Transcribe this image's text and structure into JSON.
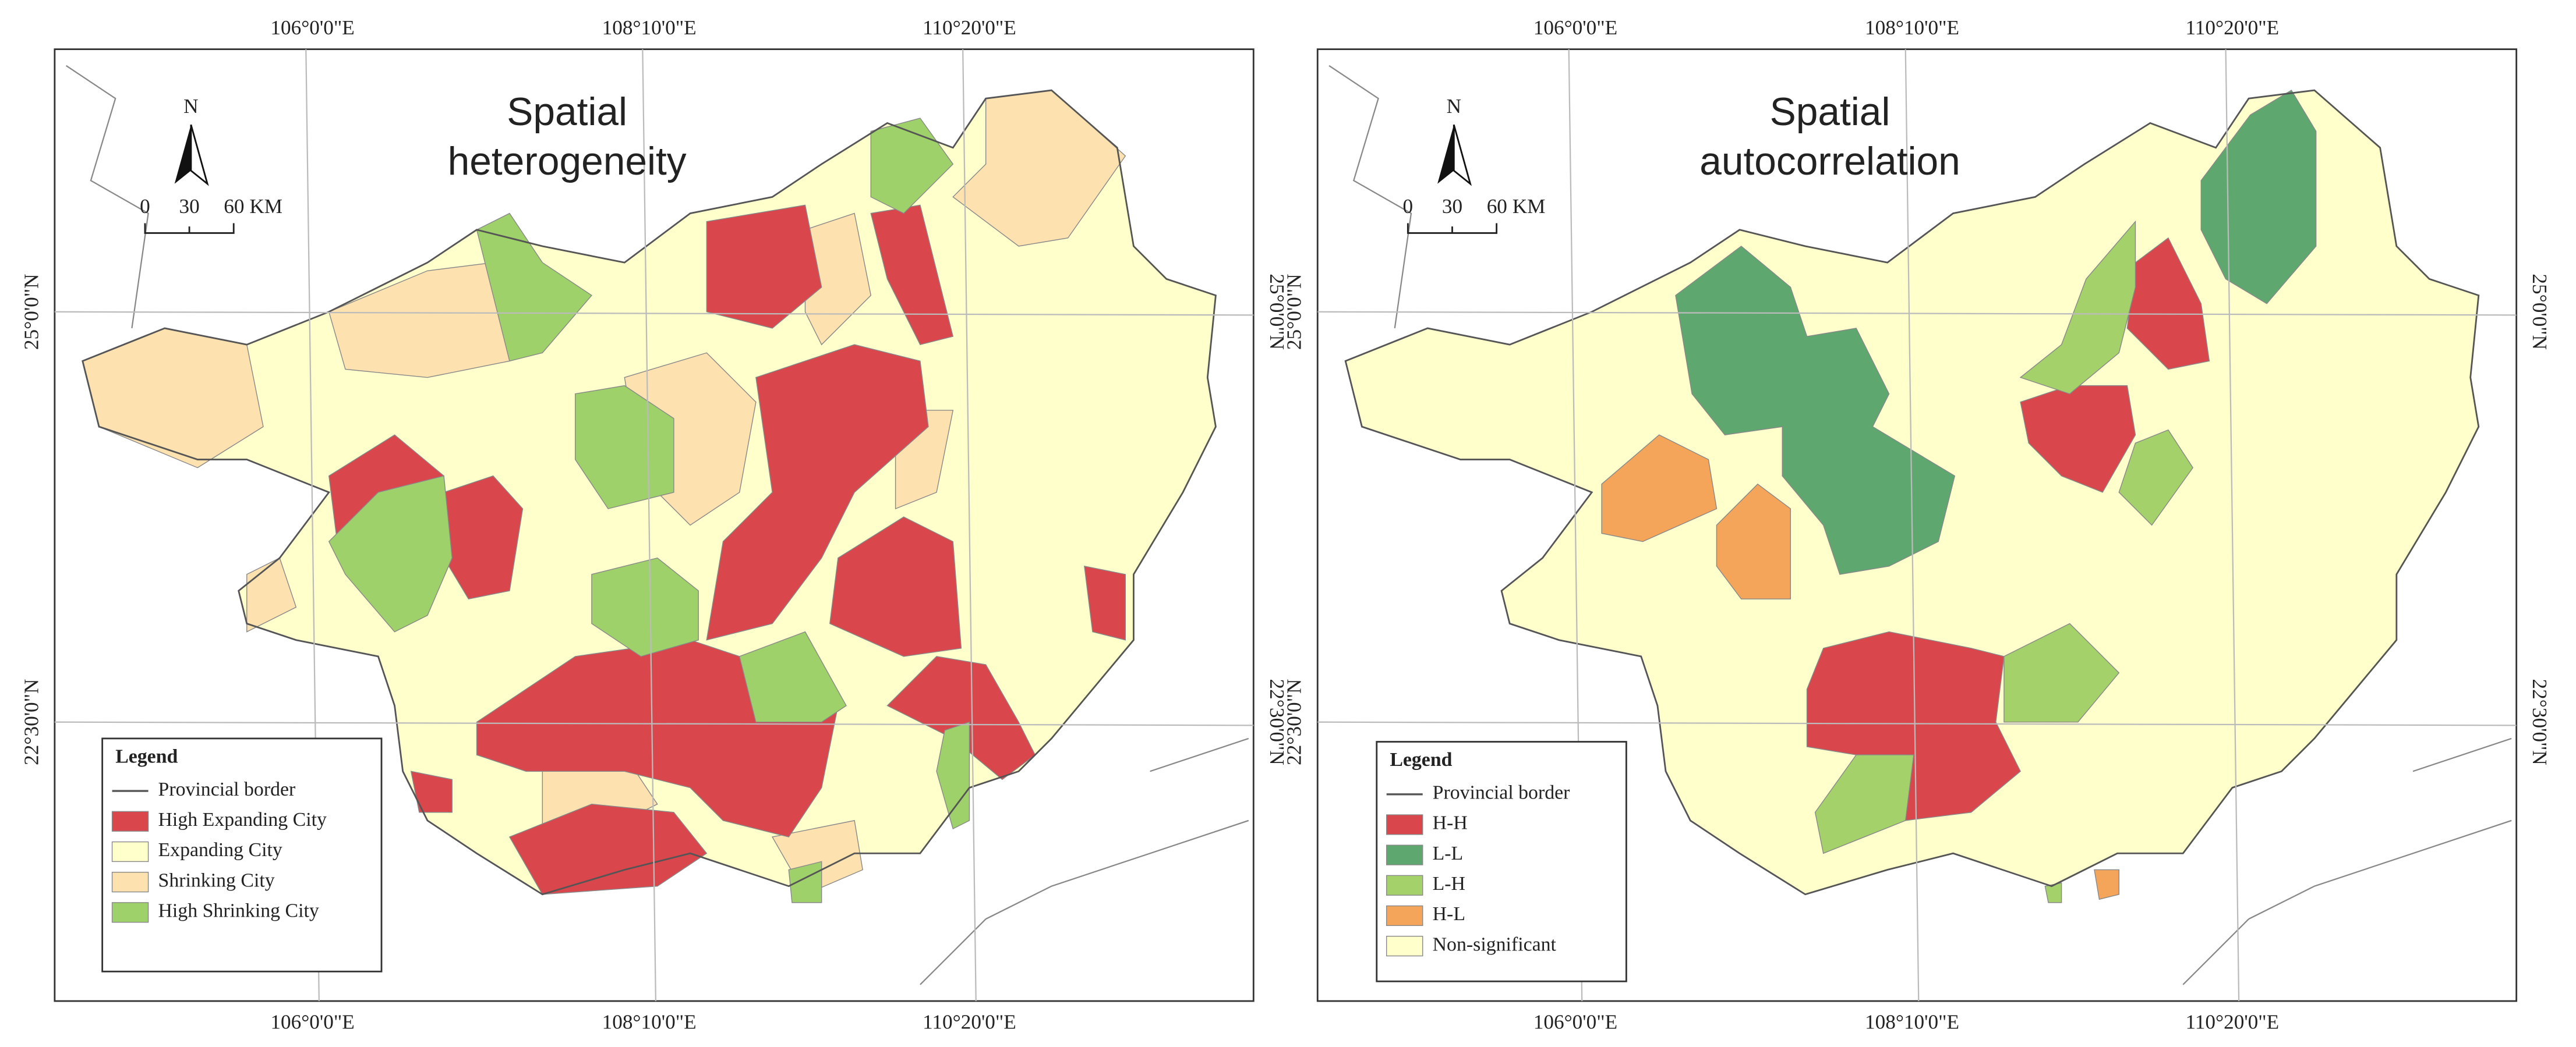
{
  "panels": [
    {
      "title_lines": [
        "Spatial",
        "heterogeneity"
      ],
      "lon_labels": [
        "106°0'0\"E",
        "108°10'0\"E",
        "110°20'0\"E"
      ],
      "lat_labels": [
        "25°0'0\"N",
        "22°30'0\"N"
      ],
      "north": "N",
      "scale_labels": [
        "0",
        "30",
        "60 KM"
      ],
      "legend": {
        "title": "Legend",
        "items": [
          {
            "label": "Provincial border",
            "color": "#555555"
          },
          {
            "label": "High Expanding City",
            "color": "#d9474d"
          },
          {
            "label": "Expanding City",
            "color": "#ffffcc"
          },
          {
            "label": "Shrinking City",
            "color": "#fde2b0"
          },
          {
            "label": "High Shrinking City",
            "color": "#9fd16a"
          }
        ]
      }
    },
    {
      "title_lines": [
        "Spatial",
        "autocorrelation"
      ],
      "lon_labels": [
        "106°0'0\"E",
        "108°10'0\"E",
        "110°20'0\"E"
      ],
      "lat_labels": [
        "25°0'0\"N",
        "22°30'0\"N"
      ],
      "north": "N",
      "scale_labels": [
        "0",
        "30",
        "60 KM"
      ],
      "legend": {
        "title": "Legend",
        "items": [
          {
            "label": "Provincial border",
            "color": "#555555"
          },
          {
            "label": "H-H",
            "color": "#d9474d"
          },
          {
            "label": "L-L",
            "color": "#5ea870"
          },
          {
            "label": "L-H",
            "color": "#a4d16a"
          },
          {
            "label": "H-L",
            "color": "#f5a55a"
          },
          {
            "label": "Non-significant",
            "color": "#ffffcc"
          }
        ]
      }
    }
  ]
}
